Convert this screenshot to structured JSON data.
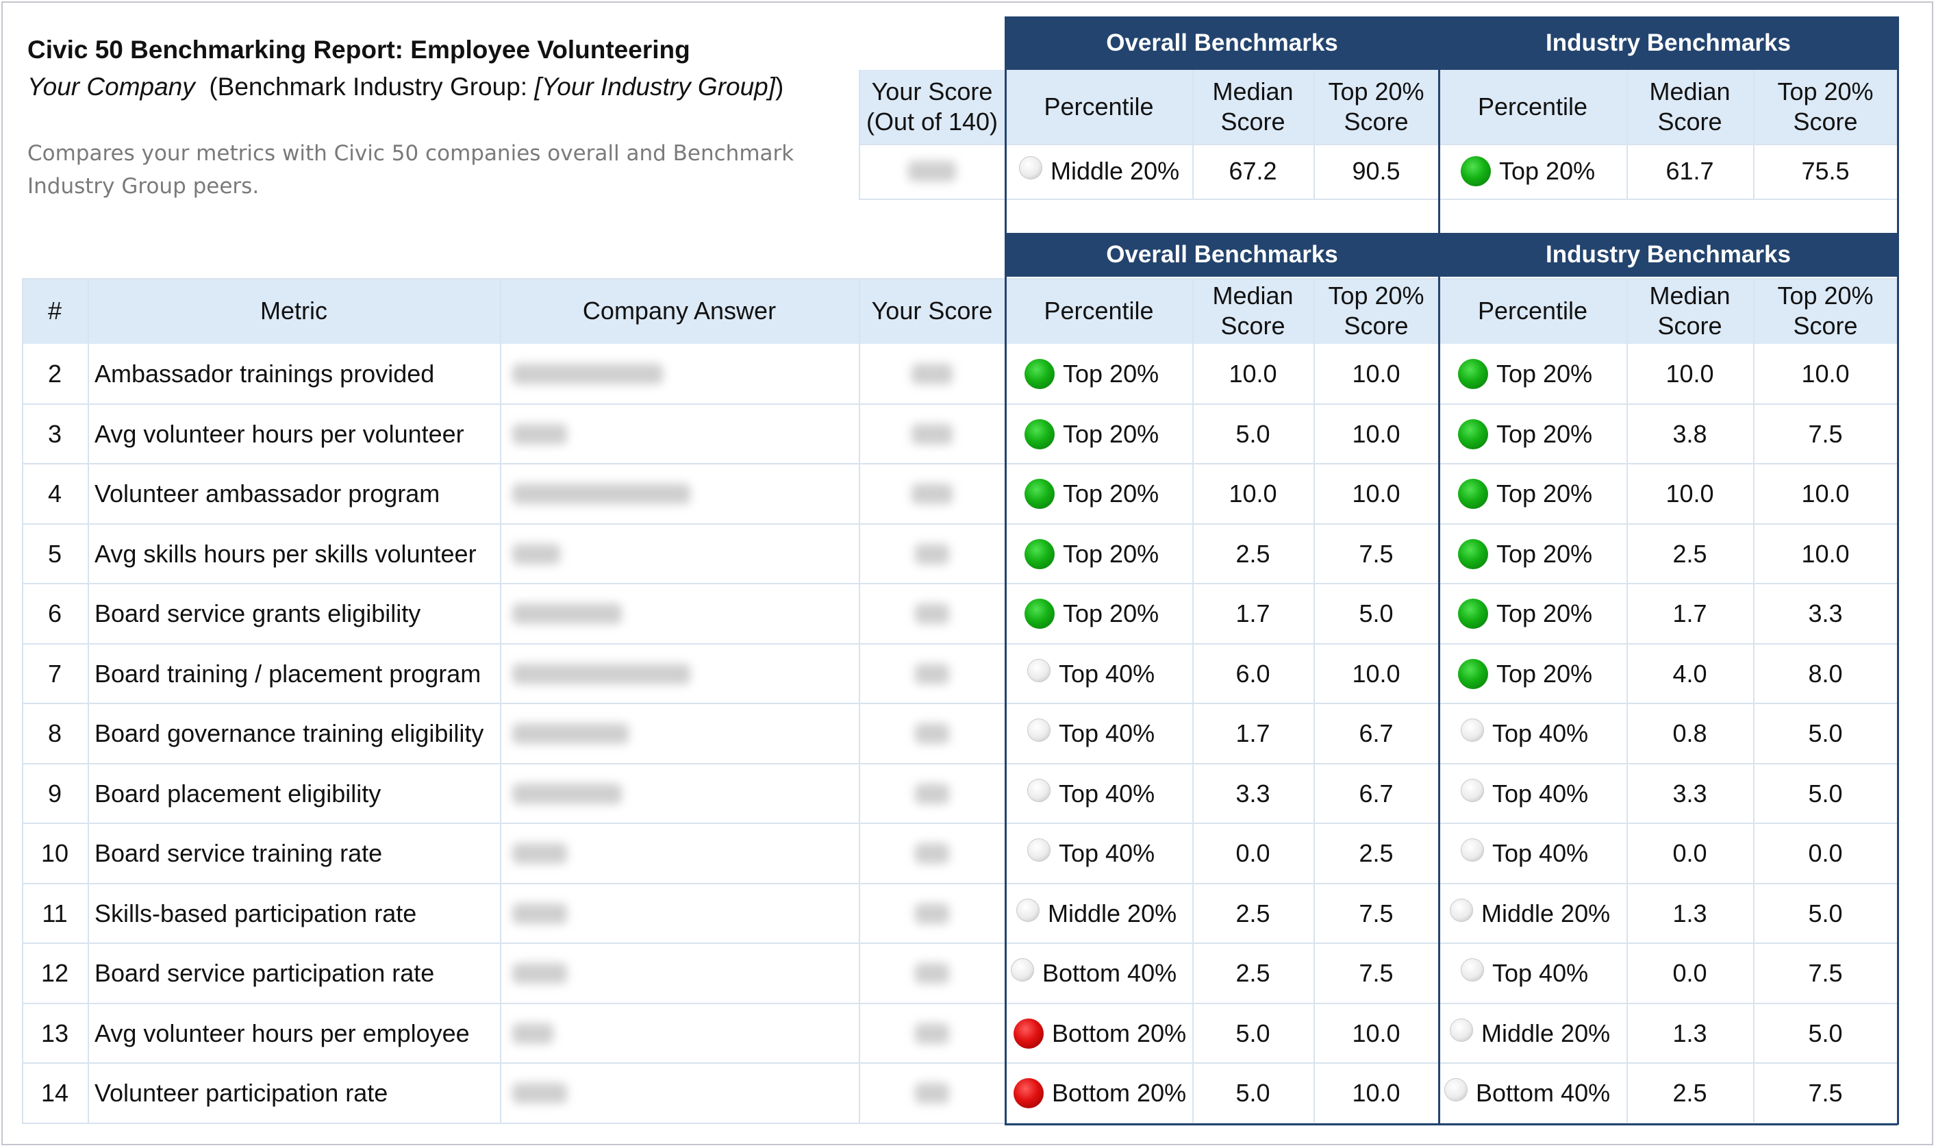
{
  "report": {
    "title": "Civic 50 Benchmarking Report: Employee Volunteering",
    "company": "Your Company",
    "industry_prefix": "(Benchmark Industry Group:",
    "industry": "[Your Industry Group]",
    "industry_suffix": ")",
    "description": "Compares your metrics with Civic 50 companies overall and Benchmark Industry Group peers."
  },
  "summary": {
    "score_header": "Your Score (Out of 140)",
    "overall_band": "Overall Benchmarks",
    "industry_band": "Industry Benchmarks",
    "col_percentile": "Percentile",
    "col_median": "Median Score",
    "col_top20": "Top 20% Score",
    "overall": {
      "status": "gray",
      "percentile": "Middle 20%",
      "median": "67.2",
      "top20": "90.5"
    },
    "industry": {
      "status": "green",
      "percentile": "Top 20%",
      "median": "61.7",
      "top20": "75.5"
    }
  },
  "table": {
    "headers": {
      "num": "#",
      "metric": "Metric",
      "answer": "Company Answer",
      "score": "Your Score",
      "percentile": "Percentile",
      "median": "Median Score",
      "top20": "Top 20% Score"
    },
    "overall_band": "Overall Benchmarks",
    "industry_band": "Industry Benchmarks",
    "rows": [
      {
        "num": "2",
        "metric": "Ambassador trainings provided",
        "overall": {
          "status": "green",
          "pct": "Top 20%",
          "median": "10.0",
          "top20": "10.0"
        },
        "industry": {
          "status": "green",
          "pct": "Top 20%",
          "median": "10.0",
          "top20": "10.0"
        }
      },
      {
        "num": "3",
        "metric": "Avg volunteer hours per volunteer",
        "overall": {
          "status": "green",
          "pct": "Top 20%",
          "median": "5.0",
          "top20": "10.0"
        },
        "industry": {
          "status": "green",
          "pct": "Top 20%",
          "median": "3.8",
          "top20": "7.5"
        }
      },
      {
        "num": "4",
        "metric": "Volunteer ambassador program",
        "overall": {
          "status": "green",
          "pct": "Top 20%",
          "median": "10.0",
          "top20": "10.0"
        },
        "industry": {
          "status": "green",
          "pct": "Top 20%",
          "median": "10.0",
          "top20": "10.0"
        }
      },
      {
        "num": "5",
        "metric": "Avg skills hours per skills volunteer",
        "overall": {
          "status": "green",
          "pct": "Top 20%",
          "median": "2.5",
          "top20": "7.5"
        },
        "industry": {
          "status": "green",
          "pct": "Top 20%",
          "median": "2.5",
          "top20": "10.0"
        }
      },
      {
        "num": "6",
        "metric": "Board service grants eligibility",
        "overall": {
          "status": "green",
          "pct": "Top 20%",
          "median": "1.7",
          "top20": "5.0"
        },
        "industry": {
          "status": "green",
          "pct": "Top 20%",
          "median": "1.7",
          "top20": "3.3"
        }
      },
      {
        "num": "7",
        "metric": "Board training / placement program",
        "overall": {
          "status": "gray",
          "pct": "Top 40%",
          "median": "6.0",
          "top20": "10.0"
        },
        "industry": {
          "status": "green",
          "pct": "Top 20%",
          "median": "4.0",
          "top20": "8.0"
        }
      },
      {
        "num": "8",
        "metric": "Board governance training eligibility",
        "overall": {
          "status": "gray",
          "pct": "Top 40%",
          "median": "1.7",
          "top20": "6.7"
        },
        "industry": {
          "status": "gray",
          "pct": "Top 40%",
          "median": "0.8",
          "top20": "5.0"
        }
      },
      {
        "num": "9",
        "metric": "Board placement eligibility",
        "overall": {
          "status": "gray",
          "pct": "Top 40%",
          "median": "3.3",
          "top20": "6.7"
        },
        "industry": {
          "status": "gray",
          "pct": "Top 40%",
          "median": "3.3",
          "top20": "5.0"
        }
      },
      {
        "num": "10",
        "metric": "Board service training rate",
        "overall": {
          "status": "gray",
          "pct": "Top 40%",
          "median": "0.0",
          "top20": "2.5"
        },
        "industry": {
          "status": "gray",
          "pct": "Top 40%",
          "median": "0.0",
          "top20": "0.0"
        }
      },
      {
        "num": "11",
        "metric": "Skills-based participation rate",
        "overall": {
          "status": "gray",
          "pct": "Middle 20%",
          "median": "2.5",
          "top20": "7.5"
        },
        "industry": {
          "status": "gray",
          "pct": "Middle 20%",
          "median": "1.3",
          "top20": "5.0"
        }
      },
      {
        "num": "12",
        "metric": "Board service participation rate",
        "overall": {
          "status": "gray",
          "pct": "Bottom 40%",
          "median": "2.5",
          "top20": "7.5"
        },
        "industry": {
          "status": "gray",
          "pct": "Top 40%",
          "median": "0.0",
          "top20": "7.5"
        }
      },
      {
        "num": "13",
        "metric": "Avg volunteer hours per employee",
        "overall": {
          "status": "red",
          "pct": "Bottom 20%",
          "median": "5.0",
          "top20": "10.0"
        },
        "industry": {
          "status": "gray",
          "pct": "Middle 20%",
          "median": "1.3",
          "top20": "5.0"
        }
      },
      {
        "num": "14",
        "metric": "Volunteer participation rate",
        "overall": {
          "status": "red",
          "pct": "Bottom 20%",
          "median": "5.0",
          "top20": "10.0"
        },
        "industry": {
          "status": "gray",
          "pct": "Bottom 40%",
          "median": "2.5",
          "top20": "7.5"
        }
      }
    ]
  }
}
